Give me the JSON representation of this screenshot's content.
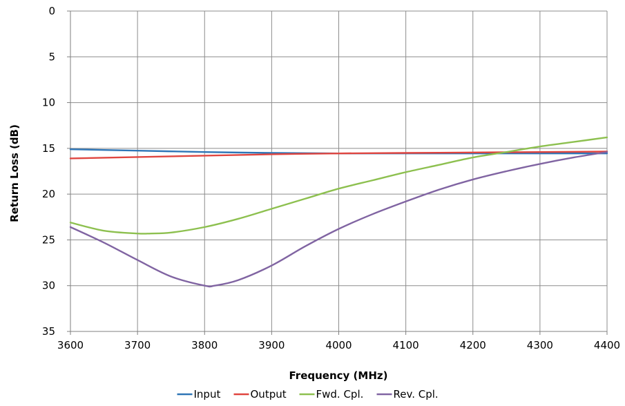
{
  "chart_data": {
    "type": "line",
    "title": "",
    "xlabel": "Frequency (MHz)",
    "ylabel": "Return Loss (dB)",
    "xlim": [
      3600,
      4400
    ],
    "ylim": [
      0,
      35
    ],
    "y_inverted": true,
    "x_ticks": [
      3600,
      3700,
      3800,
      3900,
      4000,
      4100,
      4200,
      4300,
      4400
    ],
    "y_ticks": [
      0,
      5,
      10,
      15,
      20,
      25,
      30,
      35
    ],
    "grid": true,
    "legend_position": "bottom",
    "series": [
      {
        "name": "Input",
        "color": "#2e75b6",
        "x": [
          3600,
          3700,
          3800,
          3900,
          4000,
          4100,
          4200,
          4300,
          4400
        ],
        "y": [
          15.1,
          15.25,
          15.4,
          15.5,
          15.55,
          15.55,
          15.55,
          15.55,
          15.55
        ]
      },
      {
        "name": "Output",
        "color": "#e0453f",
        "x": [
          3600,
          3700,
          3800,
          3900,
          4000,
          4100,
          4200,
          4300,
          4400
        ],
        "y": [
          16.1,
          15.95,
          15.8,
          15.65,
          15.55,
          15.5,
          15.45,
          15.4,
          15.35
        ]
      },
      {
        "name": "Fwd. Cpl.",
        "color": "#8dc04f",
        "x": [
          3600,
          3650,
          3700,
          3720,
          3750,
          3800,
          3850,
          3900,
          3950,
          4000,
          4050,
          4100,
          4150,
          4200,
          4250,
          4300,
          4350,
          4400
        ],
        "y": [
          23.1,
          24.0,
          24.3,
          24.3,
          24.2,
          23.6,
          22.7,
          21.6,
          20.5,
          19.4,
          18.5,
          17.6,
          16.8,
          16.0,
          15.4,
          14.8,
          14.3,
          13.8
        ]
      },
      {
        "name": "Rev. Cpl.",
        "color": "#8064a2",
        "x": [
          3600,
          3650,
          3700,
          3750,
          3800,
          3815,
          3850,
          3900,
          3950,
          4000,
          4050,
          4100,
          4150,
          4200,
          4250,
          4300,
          4350,
          4400
        ],
        "y": [
          23.6,
          25.3,
          27.2,
          29.0,
          30.0,
          30.0,
          29.4,
          27.8,
          25.7,
          23.8,
          22.2,
          20.8,
          19.5,
          18.4,
          17.5,
          16.7,
          16.0,
          15.4
        ]
      }
    ]
  }
}
